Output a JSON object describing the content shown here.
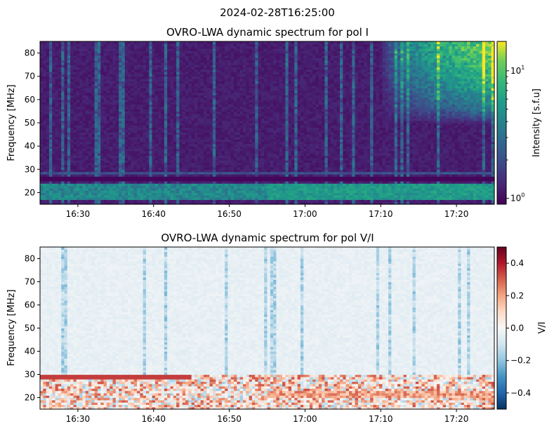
{
  "suptitle": "2024-02-28T16:25:00",
  "chart_data": [
    {
      "type": "heatmap",
      "title": "OVRO-LWA dynamic spectrum for pol I",
      "xlabel": "",
      "ylabel": "Frequency [MHz]",
      "x_ticks": [
        "16:30",
        "16:40",
        "16:50",
        "17:00",
        "17:10",
        "17:20"
      ],
      "x_tick_minutes": [
        5,
        15,
        25,
        35,
        45,
        55
      ],
      "x_range_minutes": [
        0,
        60
      ],
      "x_start": "16:25",
      "ylim": [
        15,
        85
      ],
      "y_ticks": [
        20,
        30,
        40,
        50,
        60,
        70,
        80
      ],
      "colormap": "viridis",
      "color_scale": "log",
      "colorbar": {
        "label": "Intensity [s.f.u]",
        "range": [
          0.9,
          17
        ],
        "major_ticks": [
          1,
          10
        ],
        "major_tick_labels": [
          "10^0",
          "10^1"
        ],
        "minor_ticks": [
          2,
          3,
          4,
          5,
          6,
          7,
          8,
          9
        ]
      },
      "features": [
        {
          "kind": "strong emission band",
          "freq_range": [
            17,
            24
          ],
          "level": 4.5
        },
        {
          "kind": "band gap",
          "freq_range": [
            25,
            27
          ],
          "level": 0.95
        },
        {
          "kind": "band line",
          "freq": 28.3,
          "level": 2.2
        },
        {
          "kind": "burst region",
          "time_range_minutes": [
            45,
            60
          ],
          "freq_range": [
            55,
            85
          ],
          "level": 10
        }
      ]
    },
    {
      "type": "heatmap",
      "title": "OVRO-LWA dynamic spectrum for pol V/I",
      "xlabel": "",
      "ylabel": "Frequency [MHz]",
      "x_ticks": [
        "16:30",
        "16:40",
        "16:50",
        "17:00",
        "17:10",
        "17:20"
      ],
      "x_tick_minutes": [
        5,
        15,
        25,
        35,
        45,
        55
      ],
      "x_range_minutes": [
        0,
        60
      ],
      "x_start": "16:25",
      "ylim": [
        15,
        85
      ],
      "y_ticks": [
        20,
        30,
        40,
        50,
        60,
        70,
        80
      ],
      "colormap": "RdBu_r",
      "color_scale": "linear",
      "colorbar": {
        "label": "V/I",
        "range": [
          -0.5,
          0.5
        ],
        "ticks": [
          0.4,
          0.2,
          0.0,
          -0.2,
          -0.4
        ],
        "tick_labels": [
          "0.4",
          "0.2",
          "0.0",
          "−0.2",
          "−0.4"
        ]
      },
      "features": [
        {
          "kind": "near zero",
          "freq_range": [
            30,
            85
          ],
          "level": -0.02
        },
        {
          "kind": "mixed polarization",
          "freq_range": [
            16,
            30
          ],
          "level": 0.15
        }
      ]
    }
  ]
}
